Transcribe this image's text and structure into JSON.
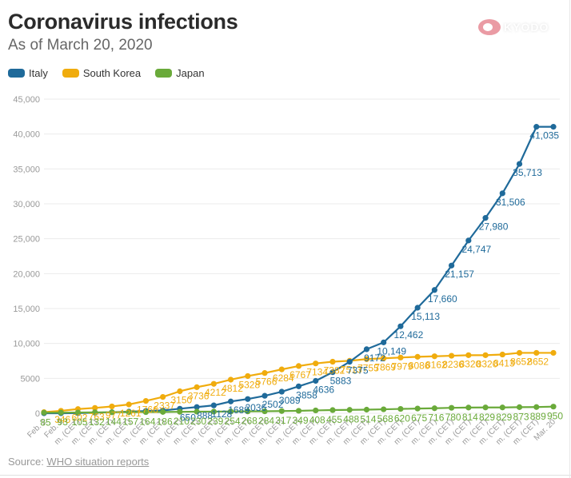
{
  "header": {
    "title": "Coronavirus infections",
    "subtitle": "As of March 20, 2020",
    "logo_text": "KYODO",
    "logo_icon": "kyodo-logo-icon"
  },
  "legend": [
    {
      "name": "Italy",
      "color": "#1f6a9a"
    },
    {
      "name": "South Korea",
      "color": "#f0ac0d"
    },
    {
      "name": "Japan",
      "color": "#6aaa3a"
    }
  ],
  "footer": {
    "source_prefix": "Source: ",
    "source_link": "WHO situation reports"
  },
  "chart_data": {
    "type": "line",
    "title": "Coronavirus infections",
    "subtitle": "As of March 20, 2020",
    "xlabel": "",
    "ylabel": "",
    "ylim": [
      0,
      45000
    ],
    "yticks": [
      0,
      5000,
      10000,
      15000,
      20000,
      25000,
      30000,
      35000,
      40000,
      45000
    ],
    "ytick_labels": [
      "0",
      "5000",
      "10,000",
      "15,000",
      "20,000",
      "25,000",
      "30,000",
      "35,000",
      "40,000",
      "45,000"
    ],
    "grid": true,
    "legend_position": "top-left",
    "x": [
      "Feb. 2",
      "Feb. 2",
      "m. (CET)",
      "m. (CET)",
      "m. (CET)",
      "m. (CET)",
      "m. (CET)",
      "m. (CET)",
      "m. (CET)",
      "m. (CET)",
      "m. (CET)",
      "m. (CET)",
      "m. (CET)",
      "m. (CET)",
      "m. (CET)",
      "m. (CET)",
      "m. (CET)",
      "m. (CET)",
      "m. (CET)",
      "m. (CET)",
      "m. (CET)",
      "m. (CET)",
      "m. (CET)",
      "m. (CET)",
      "m. (CET)",
      "m. (CET)",
      "m. (CET)",
      "m. (CET)",
      "m. (CET)",
      "m. (CET)",
      "Mar. 20"
    ],
    "series": [
      {
        "name": "Italy",
        "color": "#1f6a9a",
        "values": [
          3,
          3,
          20,
          79,
          150,
          229,
          322,
          400,
          650,
          888,
          1128,
          1689,
          2036,
          2502,
          3089,
          3858,
          4636,
          5883,
          7375,
          9172,
          10149,
          12462,
          15113,
          17660,
          21157,
          24747,
          27980,
          31506,
          35713,
          41035,
          41035
        ],
        "labels": [
          "",
          "",
          "",
          "",
          "",
          "",
          "",
          "",
          "650",
          "888",
          "1128",
          "1689",
          "2036",
          "2502",
          "3089",
          "3858",
          "4636",
          "5883",
          "7375",
          "9172",
          "10,149",
          "12,462",
          "15,113",
          "17,660",
          "21,157",
          "24,747",
          "27,980",
          "31,506",
          "35,713",
          "41,035",
          ""
        ]
      },
      {
        "name": "South Korea",
        "color": "#f0ac0d",
        "values": [
          156,
          346,
          602,
          763,
          977,
          1261,
          1766,
          2337,
          3150,
          3736,
          4212,
          4812,
          5328,
          5766,
          6284,
          6767,
          7134,
          7382,
          7513,
          7755,
          7869,
          7979,
          8086,
          8162,
          8236,
          8320,
          8320,
          8413,
          8652,
          8652,
          8652
        ],
        "labels": [
          "",
          "346",
          "602",
          "763",
          "977",
          "1261",
          "1766",
          "2337",
          "3150",
          "3736",
          "4212",
          "4812",
          "5328",
          "5766",
          "6284",
          "6767",
          "7134",
          "7382",
          "7513",
          "7755",
          "7869",
          "7979",
          "8086",
          "8162",
          "8236",
          "8320",
          "8320",
          "8413",
          "8652",
          "8652",
          ""
        ]
      },
      {
        "name": "Japan",
        "color": "#6aaa3a",
        "values": [
          85,
          93,
          105,
          132,
          144,
          157,
          164,
          186,
          210,
          230,
          239,
          254,
          268,
          284,
          317,
          349,
          408,
          455,
          488,
          514,
          568,
          620,
          675,
          716,
          780,
          814,
          829,
          829,
          873,
          889,
          950
        ],
        "labels": [
          "85",
          "93",
          "105",
          "132",
          "144",
          "157",
          "164",
          "186",
          "210",
          "230",
          "239",
          "254",
          "268",
          "284",
          "317",
          "349",
          "408",
          "455",
          "488",
          "514",
          "568",
          "620",
          "675",
          "716",
          "780",
          "814",
          "829",
          "829",
          "873",
          "889",
          "950"
        ]
      }
    ]
  }
}
